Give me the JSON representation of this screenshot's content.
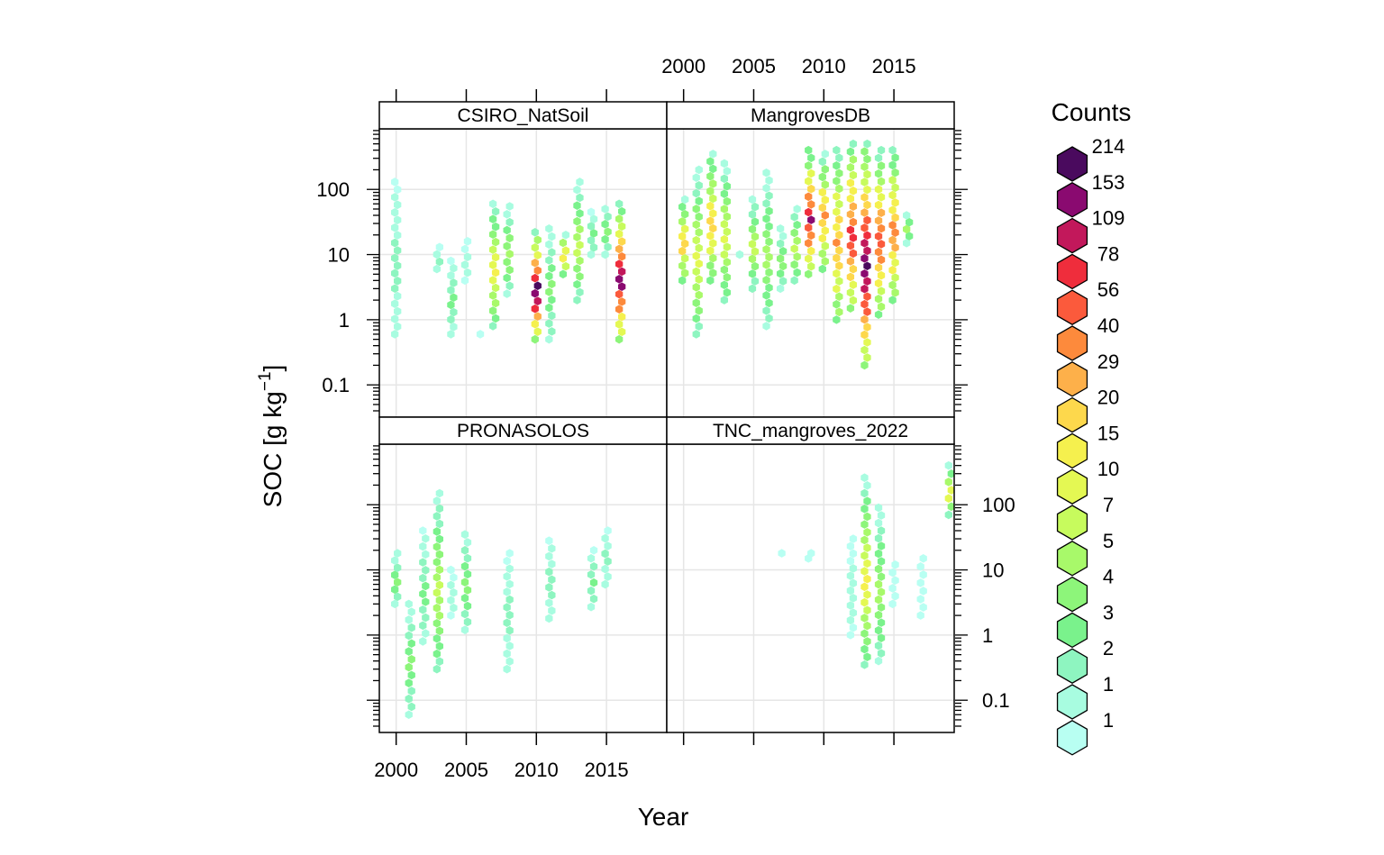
{
  "chart_data": {
    "type": "hexbin",
    "xlabel": "Year",
    "ylabel": "SOC [g kg",
    "ylabel_sup": "−1",
    "ylabel_close": "]",
    "yscale": "log",
    "xlim": [
      1998.8,
      2019.3
    ],
    "ylim": [
      0.032,
      850
    ],
    "x_ticks": [
      2000,
      2005,
      2010,
      2015
    ],
    "y_ticks": [
      {
        "value": 0.1,
        "label": "0.1"
      },
      {
        "value": 1,
        "label": "1"
      },
      {
        "value": 10,
        "label": "10"
      },
      {
        "value": 100,
        "label": "100"
      }
    ],
    "legend": {
      "title": "Counts",
      "labels": [
        "214",
        "153",
        "109",
        "78",
        "56",
        "40",
        "29",
        "20",
        "15",
        "10",
        "7",
        "5",
        "4",
        "3",
        "2",
        "1",
        "1"
      ],
      "colors": [
        "#4a0a5e",
        "#8a0a70",
        "#c2185b",
        "#ef2d3c",
        "#fb5a3c",
        "#fd8a3c",
        "#fdb04a",
        "#fdd84c",
        "#f5f04e",
        "#e4f853",
        "#c7fb5d",
        "#a8f96a",
        "#8df57a",
        "#7af28c",
        "#8ef5c0",
        "#a8fce0",
        "#b8fff2"
      ]
    },
    "panels": [
      {
        "name": "CSIRO_NatSoil",
        "points": [
          {
            "x": 2000,
            "ylo": 0.6,
            "yhi": 130,
            "c": 2
          },
          {
            "x": 2003,
            "ylo": 6,
            "yhi": 13,
            "c": 2
          },
          {
            "x": 2004,
            "ylo": 0.6,
            "yhi": 8,
            "c": 3
          },
          {
            "x": 2005,
            "ylo": 4,
            "yhi": 16,
            "c": 1
          },
          {
            "x": 2006,
            "ylo": 0.6,
            "yhi": 0.6,
            "c": 0
          },
          {
            "x": 2007,
            "ylo": 0.8,
            "yhi": 60,
            "c": 8
          },
          {
            "x": 2008,
            "ylo": 2.5,
            "yhi": 55,
            "c": 5
          },
          {
            "x": 2010,
            "ylo": 0.5,
            "yhi": 22,
            "c": 16
          },
          {
            "x": 2011,
            "ylo": 0.5,
            "yhi": 25,
            "c": 4
          },
          {
            "x": 2012,
            "ylo": 5,
            "yhi": 20,
            "c": 9
          },
          {
            "x": 2013,
            "ylo": 2,
            "yhi": 130,
            "c": 6
          },
          {
            "x": 2014,
            "ylo": 10,
            "yhi": 45,
            "c": 3
          },
          {
            "x": 2015,
            "ylo": 10,
            "yhi": 50,
            "c": 4
          },
          {
            "x": 2016,
            "ylo": 0.5,
            "yhi": 60,
            "c": 15
          }
        ]
      },
      {
        "name": "MangrovesDB",
        "points": [
          {
            "x": 2000,
            "ylo": 4,
            "yhi": 70,
            "c": 9
          },
          {
            "x": 2001,
            "ylo": 0.6,
            "yhi": 200,
            "c": 7
          },
          {
            "x": 2002,
            "ylo": 4,
            "yhi": 350,
            "c": 9
          },
          {
            "x": 2003,
            "ylo": 2,
            "yhi": 250,
            "c": 7
          },
          {
            "x": 2004,
            "ylo": 10,
            "yhi": 10,
            "c": 3
          },
          {
            "x": 2005,
            "ylo": 3,
            "yhi": 70,
            "c": 6
          },
          {
            "x": 2006,
            "ylo": 0.8,
            "yhi": 180,
            "c": 5
          },
          {
            "x": 2007,
            "ylo": 3,
            "yhi": 25,
            "c": 4
          },
          {
            "x": 2008,
            "ylo": 4,
            "yhi": 50,
            "c": 6
          },
          {
            "x": 2009,
            "ylo": 5,
            "yhi": 400,
            "c": 14
          },
          {
            "x": 2010,
            "ylo": 6,
            "yhi": 350,
            "c": 10
          },
          {
            "x": 2011,
            "ylo": 1,
            "yhi": 400,
            "c": 10
          },
          {
            "x": 2012,
            "ylo": 1.5,
            "yhi": 500,
            "c": 13
          },
          {
            "x": 2013,
            "ylo": 0.2,
            "yhi": 500,
            "c": 16
          },
          {
            "x": 2014,
            "ylo": 1.2,
            "yhi": 400,
            "c": 12
          },
          {
            "x": 2015,
            "ylo": 2,
            "yhi": 400,
            "c": 11
          },
          {
            "x": 2016,
            "ylo": 15,
            "yhi": 40,
            "c": 5
          }
        ]
      },
      {
        "name": "PRONASOLOS",
        "points": [
          {
            "x": 2000,
            "ylo": 3,
            "yhi": 18,
            "c": 4
          },
          {
            "x": 2001,
            "ylo": 0.06,
            "yhi": 3,
            "c": 4
          },
          {
            "x": 2002,
            "ylo": 0.8,
            "yhi": 40,
            "c": 3
          },
          {
            "x": 2003,
            "ylo": 0.3,
            "yhi": 150,
            "c": 6
          },
          {
            "x": 2004,
            "ylo": 2,
            "yhi": 10,
            "c": 1
          },
          {
            "x": 2005,
            "ylo": 1.2,
            "yhi": 35,
            "c": 4
          },
          {
            "x": 2008,
            "ylo": 0.3,
            "yhi": 18,
            "c": 2
          },
          {
            "x": 2011,
            "ylo": 1.8,
            "yhi": 28,
            "c": 2
          },
          {
            "x": 2014,
            "ylo": 2.7,
            "yhi": 20,
            "c": 3
          },
          {
            "x": 2015,
            "ylo": 6,
            "yhi": 40,
            "c": 2
          }
        ]
      },
      {
        "name": "TNC_mangroves_2022",
        "points": [
          {
            "x": 2007,
            "ylo": 18,
            "yhi": 18,
            "c": 0
          },
          {
            "x": 2009,
            "ylo": 15,
            "yhi": 18,
            "c": 1
          },
          {
            "x": 2012,
            "ylo": 1,
            "yhi": 30,
            "c": 1
          },
          {
            "x": 2013,
            "ylo": 0.35,
            "yhi": 260,
            "c": 8
          },
          {
            "x": 2014,
            "ylo": 0.4,
            "yhi": 90,
            "c": 5
          },
          {
            "x": 2015,
            "ylo": 3,
            "yhi": 12,
            "c": 0
          },
          {
            "x": 2017,
            "ylo": 2,
            "yhi": 15,
            "c": 0
          },
          {
            "x": 2019,
            "ylo": 70,
            "yhi": 400,
            "c": 8
          }
        ]
      }
    ]
  }
}
